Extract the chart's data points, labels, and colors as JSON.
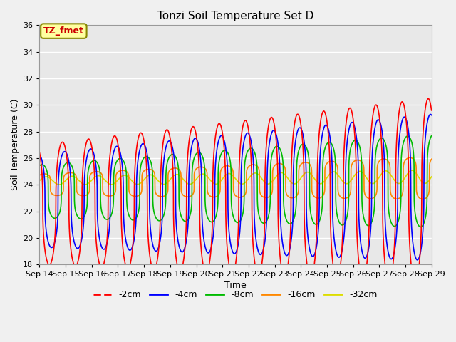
{
  "title": "Tonzi Soil Temperature Set D",
  "xlabel": "Time",
  "ylabel": "Soil Temperature (C)",
  "ylim": [
    18,
    36
  ],
  "xlim_hours": [
    0,
    360
  ],
  "annotation": "TZ_fmet",
  "series_order": [
    "-2cm",
    "-4cm",
    "-8cm",
    "-16cm",
    "-32cm"
  ],
  "series": {
    "-2cm": {
      "color": "#ff0000",
      "label": "-2cm"
    },
    "-4cm": {
      "color": "#0000ff",
      "label": "-4cm"
    },
    "-8cm": {
      "color": "#00bb00",
      "label": "-8cm"
    },
    "-16cm": {
      "color": "#ff8800",
      "label": "-16cm"
    },
    "-32cm": {
      "color": "#dddd00",
      "label": "-32cm"
    }
  },
  "tick_labels": [
    "Sep 14",
    "Sep 15",
    "Sep 16",
    "Sep 17",
    "Sep 18",
    "Sep 19",
    "Sep 20",
    "Sep 21",
    "Sep 22",
    "Sep 23",
    "Sep 24",
    "Sep 25",
    "Sep 26",
    "Sep 27",
    "Sep 28",
    "Sep 29"
  ],
  "tick_positions": [
    0,
    24,
    48,
    72,
    96,
    120,
    144,
    168,
    192,
    216,
    240,
    264,
    288,
    312,
    336,
    360
  ],
  "yticks": [
    18,
    20,
    22,
    24,
    26,
    28,
    30,
    32,
    34,
    36
  ],
  "fig_bg": "#f0f0f0",
  "ax_bg": "#e8e8e8",
  "grid_color": "#ffffff"
}
